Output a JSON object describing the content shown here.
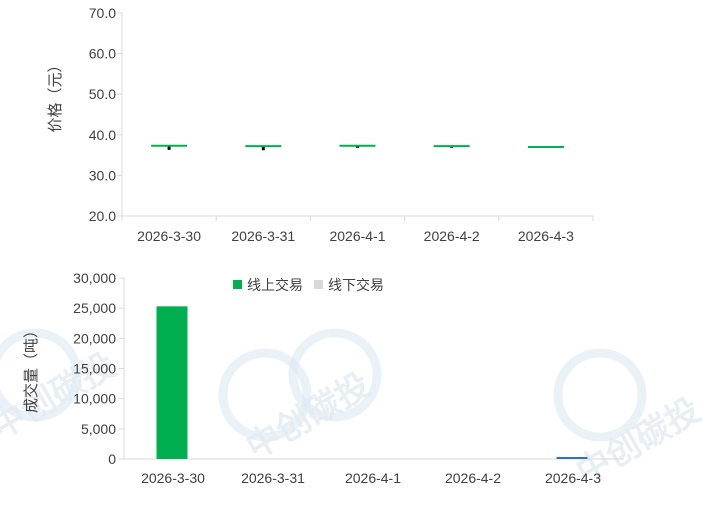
{
  "chart_data": [
    {
      "type": "candlestick",
      "ylabel": "价格（元）",
      "ylim": [
        20,
        70
      ],
      "yticks": [
        "20.0",
        "30.0",
        "40.0",
        "50.0",
        "60.0",
        "70.0"
      ],
      "categories": [
        "2026-3-30",
        "2026-3-31",
        "2026-4-1",
        "2026-4-2",
        "2026-4-3"
      ],
      "points": [
        {
          "open": 37.3,
          "close": 37.3,
          "high": 37.3,
          "low": 36.3
        },
        {
          "open": 37.2,
          "close": 37.2,
          "high": 37.2,
          "low": 36.2
        },
        {
          "open": 37.3,
          "close": 37.3,
          "high": 37.3,
          "low": 36.8
        },
        {
          "open": 37.2,
          "close": 37.2,
          "high": 37.2,
          "low": 36.8
        },
        {
          "open": 37.0,
          "close": 37.0,
          "high": 37.0,
          "low": 36.9
        }
      ],
      "colors": {
        "tick": "#00b050",
        "wick": "#000000"
      }
    },
    {
      "type": "bar",
      "ylabel": "成交量（吨）",
      "ylim": [
        0,
        30000
      ],
      "yticks": [
        "0",
        "5,000",
        "10,000",
        "15,000",
        "20,000",
        "25,000",
        "30,000"
      ],
      "categories": [
        "2026-3-30",
        "2026-3-31",
        "2026-4-1",
        "2026-4-2",
        "2026-4-3"
      ],
      "legend_position": "top",
      "series": [
        {
          "name": "线上交易",
          "color": "#00b050",
          "values": [
            25300,
            0,
            0,
            0,
            0
          ]
        },
        {
          "name": "线下交易",
          "color": "#d9d9d9",
          "values": [
            0,
            0,
            0,
            0,
            0
          ]
        }
      ],
      "extra_bars": [
        {
          "category_index": 4,
          "value": 150,
          "color": "#2e75b6"
        }
      ]
    }
  ],
  "watermark": {
    "text": "中创碳投",
    "color": "#d9e8f2"
  }
}
